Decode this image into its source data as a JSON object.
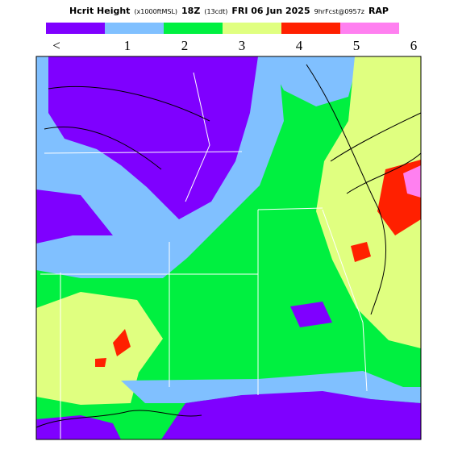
{
  "header": {
    "title_parts": [
      "Hcrit Height",
      "(x1000ftMSL)",
      "18Z",
      "(13cdt)",
      "FRI 06 Jun 2025",
      "9hrFcst@0957z",
      "RAP"
    ]
  },
  "legend": {
    "colors": [
      "#7f00ff",
      "#80c0ff",
      "#00f040",
      "#e0ff80",
      "#ff2000",
      "#ff80f0"
    ],
    "labels": [
      "<",
      "1",
      "2",
      "3",
      "4",
      "5",
      "6"
    ]
  }
}
